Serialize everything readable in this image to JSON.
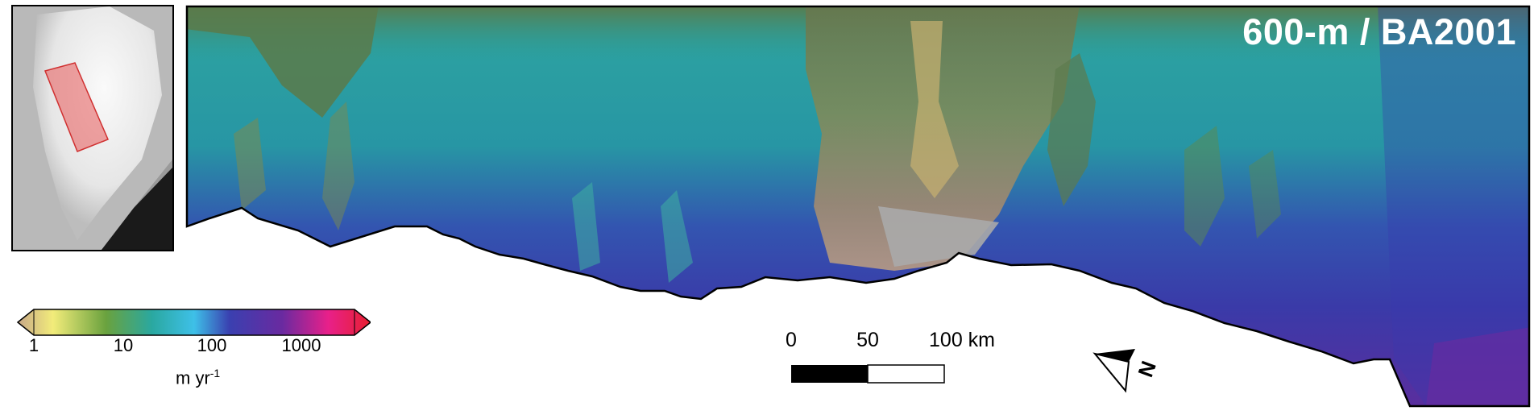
{
  "title": "600-m / BA2001",
  "colorbar": {
    "ticks": [
      "1",
      "10",
      "100",
      "1000"
    ],
    "unit_base": "m yr",
    "unit_exp": "-1",
    "colors": [
      "#c8a888",
      "#f2ec7a",
      "#6aa23e",
      "#2aa8a0",
      "#3ec0e8",
      "#3a40b0",
      "#6a2aa0",
      "#e8208a",
      "#e82030"
    ]
  },
  "scalebar": {
    "labels": [
      "0",
      "50",
      "100 km"
    ]
  },
  "north_arrow": {
    "label": "N"
  },
  "inset": {
    "highlight_color": "#e85a5a"
  }
}
